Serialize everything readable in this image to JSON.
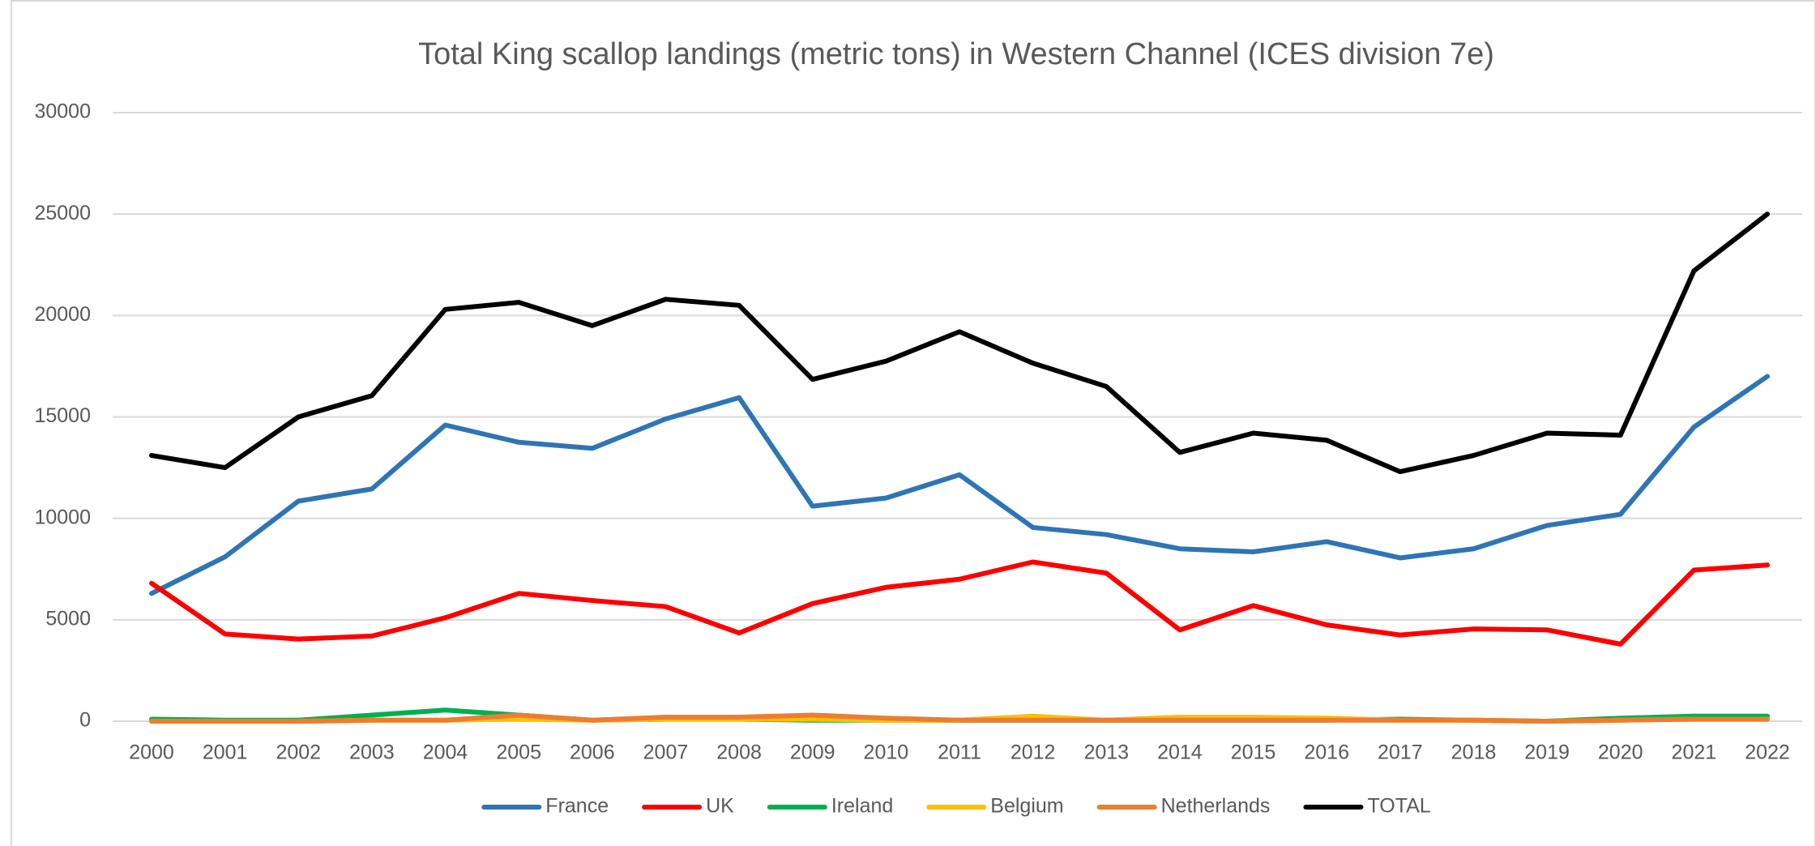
{
  "chart_data": {
    "type": "line",
    "title": "Total King scallop landings (metric tons) in Western Channel (ICES division 7e)",
    "categories": [
      "2000",
      "2001",
      "2002",
      "2003",
      "2004",
      "2005",
      "2006",
      "2007",
      "2008",
      "2009",
      "2010",
      "2011",
      "2012",
      "2013",
      "2014",
      "2015",
      "2016",
      "2017",
      "2018",
      "2019",
      "2020",
      "2021",
      "2022"
    ],
    "series": [
      {
        "name": "France",
        "color": "#2e75b6",
        "values": [
          6300,
          8100,
          10850,
          11450,
          14600,
          13750,
          13450,
          14900,
          15950,
          10600,
          11000,
          12150,
          9550,
          9200,
          8500,
          8350,
          8850,
          8050,
          8500,
          9650,
          10200,
          14500,
          17000
        ]
      },
      {
        "name": "UK",
        "color": "#ff0000",
        "values": [
          6800,
          4300,
          4050,
          4200,
          5100,
          6300,
          5950,
          5650,
          4350,
          5800,
          6600,
          7000,
          7850,
          7300,
          4500,
          5700,
          4750,
          4250,
          4550,
          4500,
          3800,
          7450,
          7700
        ]
      },
      {
        "name": "Ireland",
        "color": "#00b050",
        "values": [
          100,
          50,
          50,
          300,
          550,
          300,
          50,
          100,
          100,
          50,
          50,
          50,
          50,
          50,
          50,
          50,
          50,
          100,
          50,
          0,
          150,
          250,
          250
        ]
      },
      {
        "name": "Belgium",
        "color": "#ffc000",
        "values": [
          0,
          0,
          0,
          50,
          50,
          100,
          50,
          100,
          100,
          100,
          50,
          50,
          250,
          50,
          200,
          200,
          150,
          50,
          50,
          0,
          50,
          100,
          100
        ]
      },
      {
        "name": "Netherlands",
        "color": "#ed7d31",
        "values": [
          0,
          0,
          0,
          50,
          50,
          300,
          50,
          200,
          200,
          300,
          150,
          50,
          50,
          50,
          50,
          50,
          50,
          50,
          50,
          0,
          50,
          100,
          100
        ]
      },
      {
        "name": "TOTAL",
        "color": "#000000",
        "values": [
          13100,
          12500,
          15000,
          16050,
          20300,
          20650,
          19500,
          20800,
          20500,
          16850,
          17750,
          19200,
          17650,
          16500,
          13250,
          14200,
          13850,
          12300,
          13100,
          14200,
          14100,
          22200,
          25000
        ]
      }
    ],
    "ylim": [
      0,
      30000
    ],
    "yticks": [
      0,
      5000,
      10000,
      15000,
      20000,
      25000,
      30000
    ],
    "grid": true,
    "legend": "bottom"
  }
}
